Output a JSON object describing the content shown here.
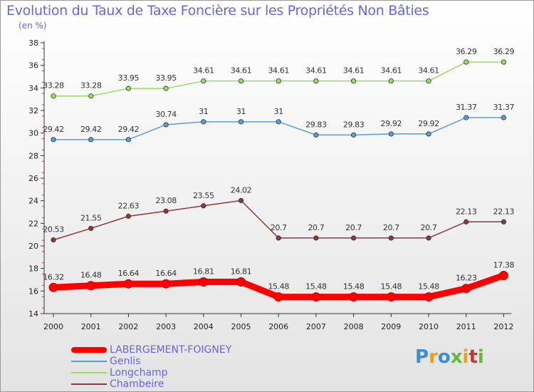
{
  "chart_title": "Evolution du Taux de Taxe Foncière sur les Propriétés Non Bâties",
  "chart_unit": "(en %)",
  "logo_text": "Proxiti",
  "chart_data": {
    "type": "line",
    "title": "Evolution du Taux de Taxe Foncière sur les Propriétés Non Bâties",
    "ylabel": "(en %)",
    "xlabel": "",
    "x": [
      "2000",
      "2001",
      "2002",
      "2003",
      "2004",
      "2005",
      "2006",
      "2007",
      "2008",
      "2009",
      "2010",
      "2011",
      "2012"
    ],
    "ylim": [
      14,
      38
    ],
    "yticks": [
      14,
      16,
      18,
      20,
      22,
      24,
      26,
      28,
      30,
      32,
      34,
      36,
      38
    ],
    "grid": false,
    "legend_position": "bottom-left",
    "series": [
      {
        "name": "LABERGEMENT-FOIGNEY",
        "color": "#ff0000",
        "values": [
          16.32,
          16.48,
          16.64,
          16.64,
          16.81,
          16.81,
          15.48,
          15.48,
          15.48,
          15.48,
          15.48,
          16.23,
          17.38
        ],
        "labels": [
          "16.32",
          "16.48",
          "16.64",
          "16.64",
          "16.81",
          "16.81",
          "15.48",
          "15.48",
          "15.48",
          "15.48",
          "15.48",
          "16.23",
          "17.38"
        ]
      },
      {
        "name": "Genlis",
        "color": "#5a9fd4",
        "values": [
          29.42,
          29.42,
          29.42,
          30.74,
          31,
          31,
          31,
          29.83,
          29.83,
          29.92,
          29.92,
          31.37,
          31.37
        ],
        "labels": [
          "29.42",
          "29.42",
          "29.42",
          "30.74",
          "31",
          "31",
          "31",
          "29.83",
          "29.83",
          "29.92",
          "29.92",
          "31.37",
          "31.37"
        ]
      },
      {
        "name": "Longchamp",
        "color": "#99dd66",
        "values": [
          33.28,
          33.28,
          33.95,
          33.95,
          34.61,
          34.61,
          34.61,
          34.61,
          34.61,
          34.61,
          34.61,
          36.29,
          36.29
        ],
        "labels": [
          "33.28",
          "33.28",
          "33.95",
          "33.95",
          "34.61",
          "34.61",
          "34.61",
          "34.61",
          "34.61",
          "34.61",
          "34.61",
          "36.29",
          "36.29"
        ]
      },
      {
        "name": "Chambeire",
        "color": "#8b3a3a",
        "values": [
          20.53,
          21.55,
          22.63,
          23.08,
          23.55,
          24.02,
          20.7,
          20.7,
          20.7,
          20.7,
          20.7,
          22.13,
          22.13
        ],
        "labels": [
          "20.53",
          "21.55",
          "22.63",
          "23.08",
          "23.55",
          "24.02",
          "20.7",
          "20.7",
          "20.7",
          "20.7",
          "20.7",
          "22.13",
          "22.13"
        ]
      }
    ]
  }
}
